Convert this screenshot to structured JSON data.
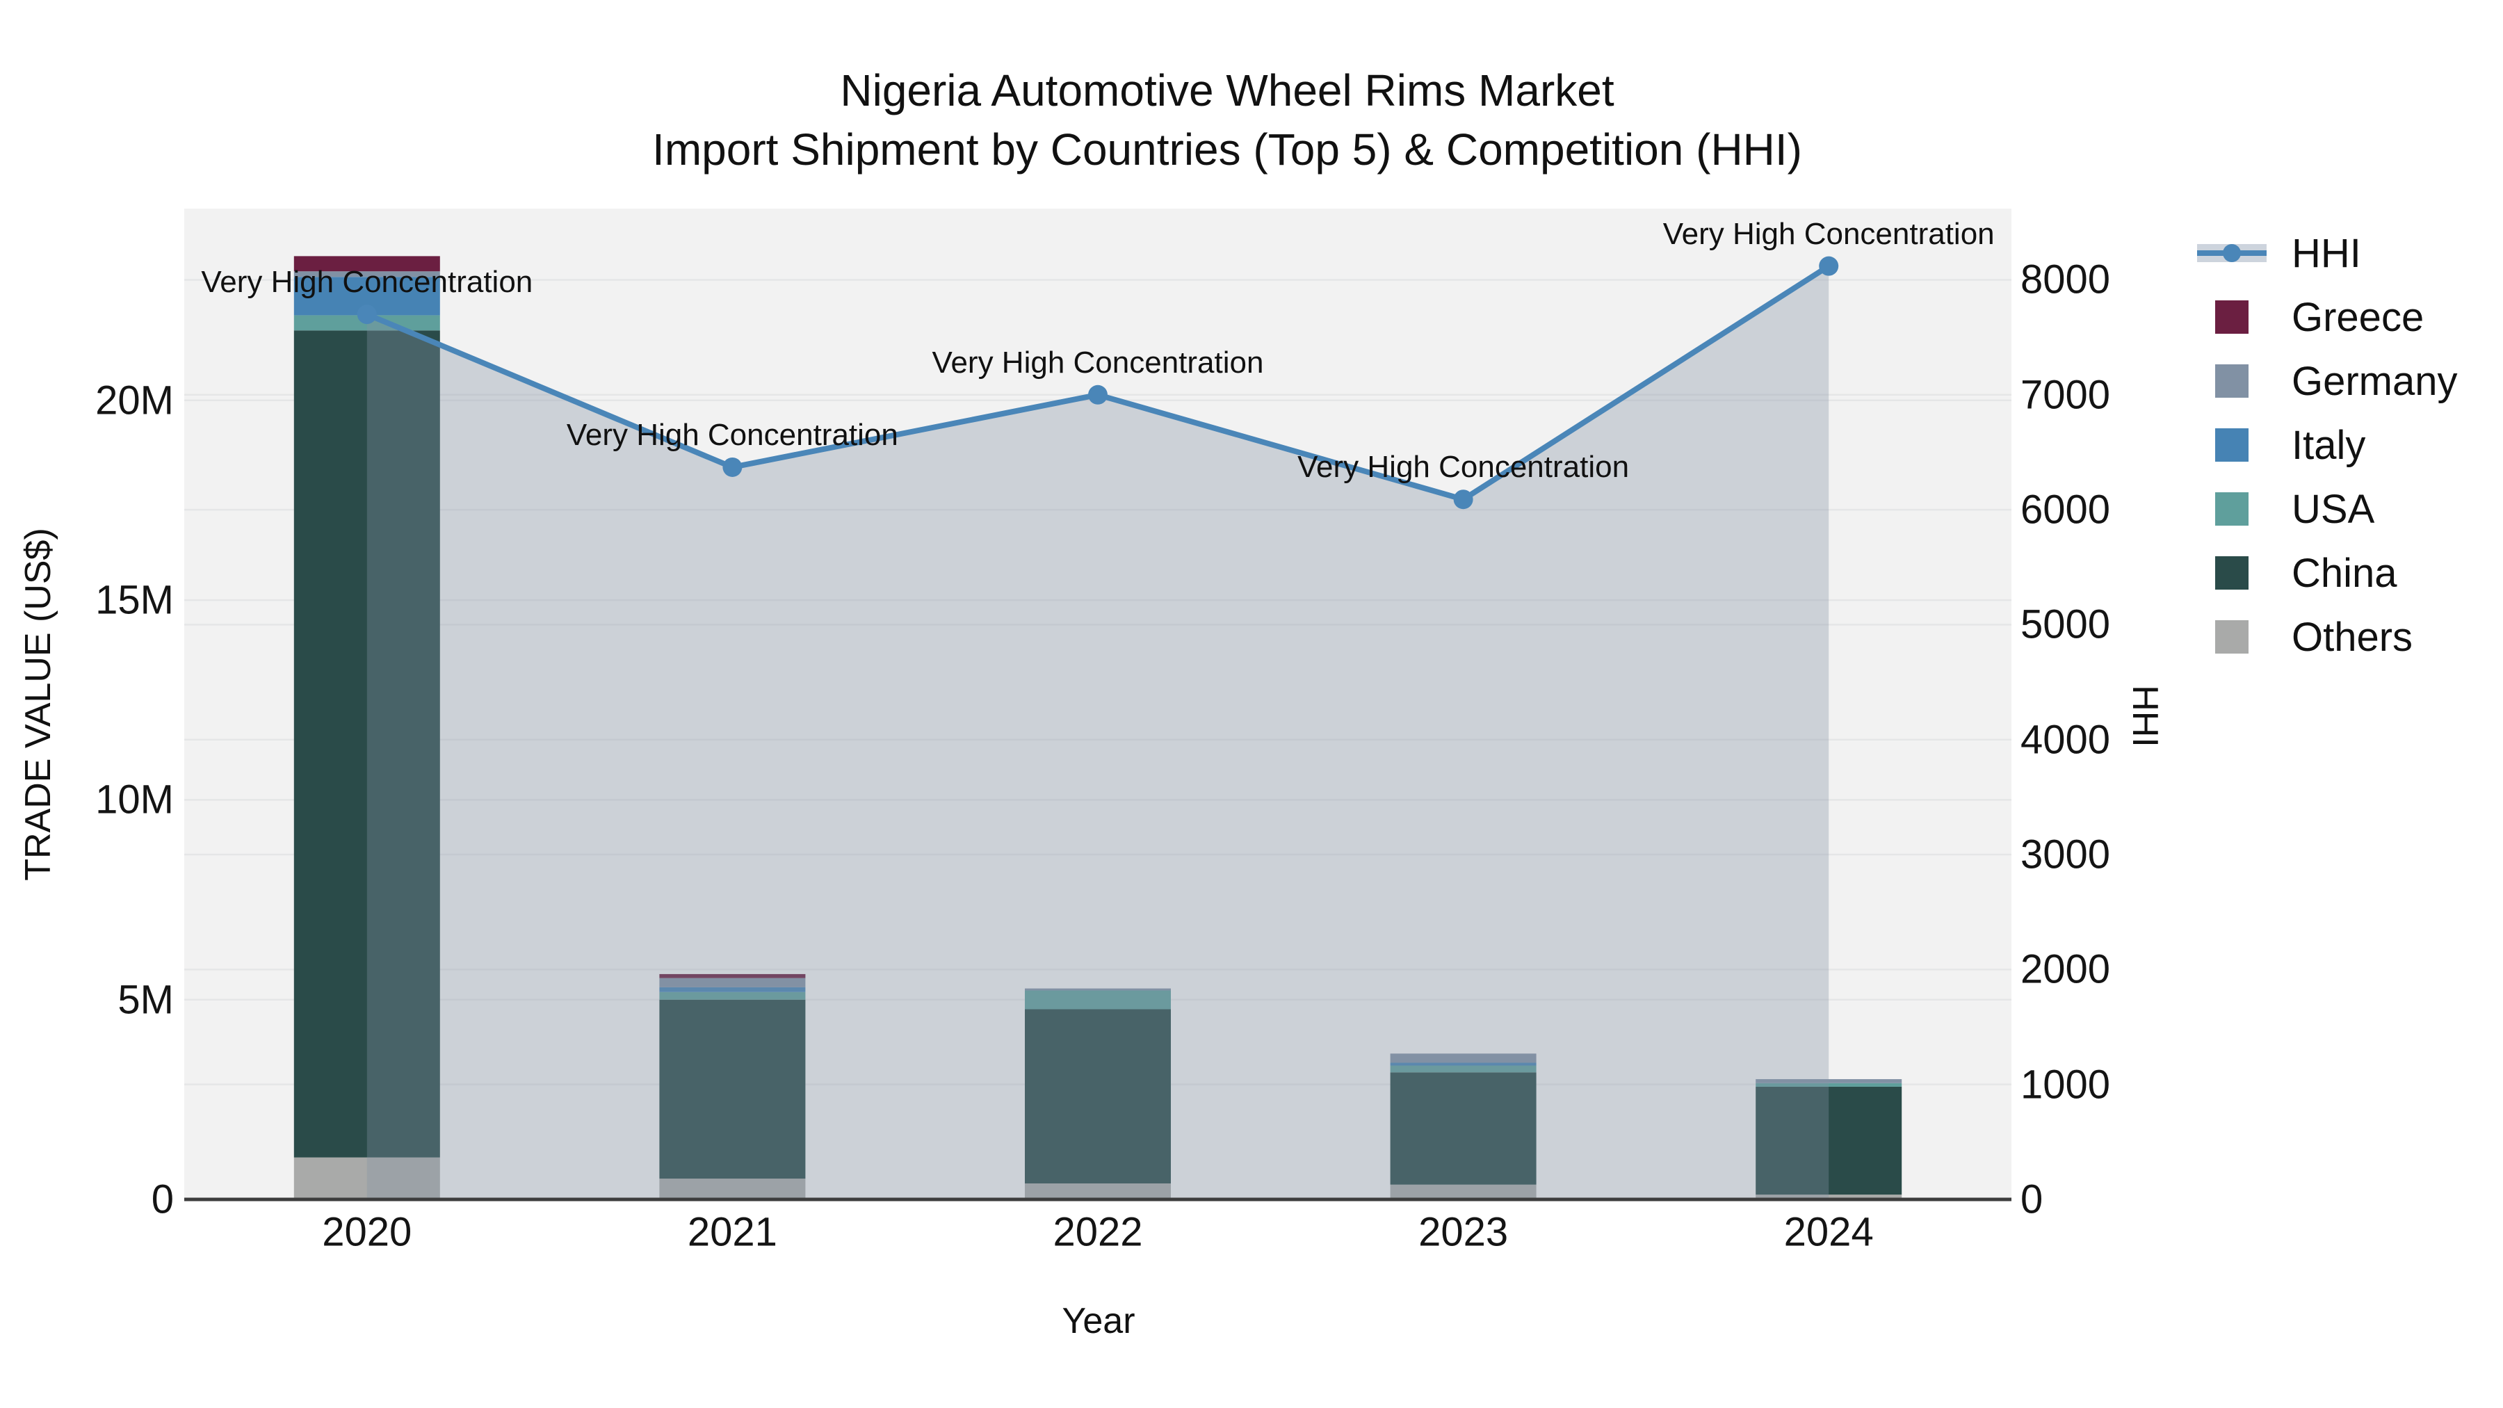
{
  "title": {
    "line1": "Nigeria Automotive Wheel Rims Market",
    "line2": "Import Shipment by Countries (Top 5) & Competition (HHI)"
  },
  "chart_data": {
    "type": "combo: stacked bar (trade value) + line with area fill (HHI)",
    "title": "Nigeria Automotive Wheel Rims Market — Import Shipment by Countries (Top 5) & Competition (HHI)",
    "xlabel": "Year",
    "ylabel_left": "TRADE VALUE (US$)",
    "ylabel_right": "HHI",
    "categories": [
      "2020",
      "2021",
      "2022",
      "2023",
      "2024"
    ],
    "bar_series_bottom_to_top": [
      {
        "name": "Others",
        "color": "#a9aaa9",
        "values_million_usd": [
          1.05,
          0.52,
          0.4,
          0.37,
          0.12
        ]
      },
      {
        "name": "China",
        "color": "#2a4b49",
        "values_million_usd": [
          20.7,
          4.48,
          4.36,
          2.81,
          2.7
        ]
      },
      {
        "name": "USA",
        "color": "#5f9f9c",
        "values_million_usd": [
          0.38,
          0.19,
          0.47,
          0.17,
          0.09
        ]
      },
      {
        "name": "Italy",
        "color": "#4683b4",
        "values_million_usd": [
          0.96,
          0.12,
          0.0,
          0.07,
          0.0
        ]
      },
      {
        "name": "Germany",
        "color": "#8191a4",
        "values_million_usd": [
          0.14,
          0.23,
          0.05,
          0.23,
          0.1
        ]
      },
      {
        "name": "Greece",
        "color": "#6b1f41",
        "values_million_usd": [
          0.38,
          0.1,
          0.0,
          0.0,
          0.0
        ]
      }
    ],
    "bar_totals_million_usd": [
      23.61,
      5.64,
      5.28,
      3.65,
      3.01
    ],
    "line_series": {
      "name": "HHI",
      "color": "#4a86b8",
      "area_fill_color": "rgba(132,146,163,0.34)",
      "values": [
        7700,
        6370,
        7000,
        6090,
        8120
      ]
    },
    "point_annotation_text": "Very High Concentration",
    "left_axis": {
      "ticks": [
        "0",
        "5M",
        "10M",
        "15M",
        "20M"
      ],
      "tick_values_million": [
        0,
        5,
        10,
        15,
        20
      ],
      "max_million": 24.8,
      "grid": true
    },
    "right_axis": {
      "ticks": [
        "0",
        "1000",
        "2000",
        "3000",
        "4000",
        "5000",
        "6000",
        "7000",
        "8000"
      ],
      "tick_values": [
        0,
        1000,
        2000,
        3000,
        4000,
        5000,
        6000,
        7000,
        8000
      ],
      "max": 8620,
      "grid": true
    },
    "legend_position": "right",
    "plot_background": "#f2f2f2",
    "gridline_color": "#e5e6e7",
    "axis_line_color": "#3d3d3d"
  },
  "legend": {
    "items": [
      {
        "label": "HHI",
        "color": "#4a86b8",
        "kind": "line"
      },
      {
        "label": "Greece",
        "color": "#6b1f41",
        "kind": "swatch"
      },
      {
        "label": "Germany",
        "color": "#8191a4",
        "kind": "swatch"
      },
      {
        "label": "Italy",
        "color": "#4683b4",
        "kind": "swatch"
      },
      {
        "label": "USA",
        "color": "#5f9f9c",
        "kind": "swatch"
      },
      {
        "label": "China",
        "color": "#2a4b49",
        "kind": "swatch"
      },
      {
        "label": "Others",
        "color": "#a9aaa9",
        "kind": "swatch"
      }
    ]
  },
  "axis_titles": {
    "left": "TRADE VALUE (US$)",
    "right": "HHI",
    "bottom": "Year"
  }
}
